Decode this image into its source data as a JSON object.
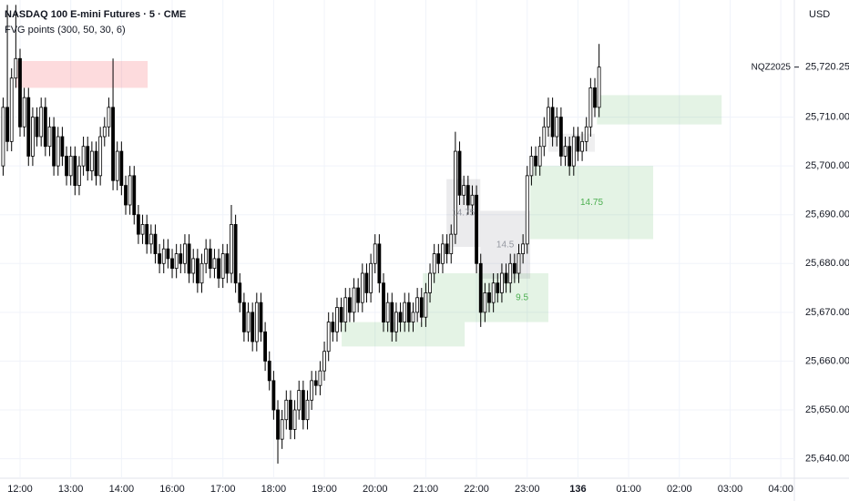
{
  "chart_data": {
    "type": "candlestick",
    "title": "NASDAQ 100 E-mini Futures · 5 · CME",
    "indicator": "FVG points (300, 50, 30, 6)",
    "currency": "USD",
    "symbol": "NQZ2025",
    "last_price": {
      "value": 25720.25,
      "label": "25,720.25"
    },
    "up_color": "#ffffff",
    "down_color": "#000000",
    "grid": true,
    "xlim": [
      -0.74,
      187.2
    ],
    "ylim": [
      25636,
      25734
    ],
    "xticks": [
      {
        "value": 4,
        "label": "12:00"
      },
      {
        "value": 16,
        "label": "13:00"
      },
      {
        "value": 28,
        "label": "14:00"
      },
      {
        "value": 40,
        "label": "16:00"
      },
      {
        "value": 52,
        "label": "17:00"
      },
      {
        "value": 64,
        "label": "18:00"
      },
      {
        "value": 76,
        "label": "19:00"
      },
      {
        "value": 88,
        "label": "20:00"
      },
      {
        "value": 100,
        "label": "21:00"
      },
      {
        "value": 112,
        "label": "22:00"
      },
      {
        "value": 124,
        "label": "23:00"
      },
      136,
      {
        "value": 148,
        "label": "01:00"
      },
      {
        "value": 160,
        "label": "02:00"
      },
      {
        "value": 172,
        "label": "03:00"
      },
      {
        "value": 184,
        "label": "04:00"
      }
    ],
    "yticks": [
      {
        "value": 25640,
        "label": "25,640.00"
      },
      {
        "value": 25650,
        "label": "25,650.00"
      },
      {
        "value": 25660,
        "label": "25,660.00"
      },
      {
        "value": 25670,
        "label": "25,670.00"
      },
      {
        "value": 25680,
        "label": "25,680.00"
      },
      {
        "value": 25690,
        "label": "25,690.00"
      },
      {
        "value": 25700,
        "label": "25,700.00"
      },
      {
        "value": 25710,
        "label": "25,710.00"
      }
    ],
    "open": [
      25700,
      25712,
      25705,
      25718,
      25722,
      25708,
      25714,
      25702,
      25710,
      25706,
      25712,
      25704,
      25708,
      25700,
      25706,
      25702,
      25698,
      25702,
      25696,
      25700,
      25704,
      25699,
      25703,
      25698,
      25706,
      25708,
      25712,
      25697,
      25703,
      25696,
      25692,
      25698,
      25690,
      25686,
      25688,
      25684,
      25686,
      25682,
      25680,
      25683,
      25681,
      25679,
      25682,
      25680,
      25684,
      25678,
      25681,
      25676,
      25680,
      25683,
      25679,
      25681,
      25677,
      25682,
      25678,
      25688,
      25676,
      25672,
      25666,
      25670,
      25664,
      25672,
      25666,
      25660,
      25656,
      25650,
      25644,
      25648,
      25652,
      25646,
      25650,
      25654,
      25648,
      25652,
      25656,
      25655,
      25658,
      25662,
      25668,
      25666,
      25671,
      25668,
      25673,
      25670,
      25675,
      25672,
      25678,
      25674,
      25680,
      25684,
      25676,
      25668,
      25672,
      25666,
      25670,
      25668,
      25672,
      25668,
      25670,
      25673,
      25669,
      25674,
      25678,
      25682,
      25680,
      25684,
      25682,
      25686,
      25703,
      25694,
      25696,
      25692,
      25694,
      25680,
      25670,
      25674,
      25672,
      25676,
      25674,
      25678,
      25676,
      25680,
      25678,
      25682,
      25684,
      25698,
      25702,
      25700,
      25704,
      25708,
      25712,
      25706,
      25710,
      25702,
      25704,
      25700,
      25706,
      25703,
      25705,
      25708,
      25716,
      25712
    ],
    "high": [
      25714,
      25733,
      25720,
      25733,
      25724,
      25716,
      25716,
      25712,
      25712,
      25714,
      25714,
      25710,
      25710,
      25708,
      25708,
      25704,
      25704,
      25704,
      25702,
      25706,
      25706,
      25705,
      25705,
      25708,
      25710,
      25714,
      25722,
      25705,
      25705,
      25698,
      25700,
      25700,
      25692,
      25690,
      25690,
      25688,
      25688,
      25684,
      25685,
      25685,
      25683,
      25684,
      25684,
      25686,
      25686,
      25683,
      25683,
      25682,
      25685,
      25685,
      25683,
      25683,
      25684,
      25684,
      25692,
      25690,
      25678,
      25674,
      25672,
      25672,
      25674,
      25674,
      25668,
      25662,
      25658,
      25652,
      25650,
      25654,
      25654,
      25652,
      25656,
      25656,
      25654,
      25658,
      25658,
      25660,
      25664,
      25670,
      25670,
      25673,
      25673,
      25675,
      25675,
      25677,
      25677,
      25680,
      25680,
      25682,
      25686,
      25686,
      25678,
      25674,
      25674,
      25672,
      25672,
      25674,
      25674,
      25672,
      25675,
      25675,
      25676,
      25680,
      25684,
      25684,
      25686,
      25686,
      25688,
      25707,
      25705,
      25698,
      25698,
      25696,
      25696,
      25682,
      25676,
      25676,
      25678,
      25678,
      25680,
      25680,
      25682,
      25682,
      25684,
      25686,
      25700,
      25704,
      25704,
      25706,
      25710,
      25714,
      25714,
      25712,
      25712,
      25706,
      25706,
      25708,
      25708,
      25707,
      25710,
      25718,
      25718,
      25725
    ],
    "low": [
      25698,
      25703,
      25703,
      25716,
      25706,
      25706,
      25700,
      25700,
      25704,
      25704,
      25702,
      25702,
      25698,
      25698,
      25700,
      25696,
      25696,
      25694,
      25694,
      25698,
      25697,
      25697,
      25696,
      25696,
      25704,
      25706,
      25695,
      25695,
      25694,
      25690,
      25690,
      25688,
      25684,
      25684,
      25682,
      25682,
      25680,
      25678,
      25678,
      25679,
      25677,
      25677,
      25678,
      25678,
      25676,
      25676,
      25674,
      25674,
      25678,
      25677,
      25677,
      25675,
      25675,
      25676,
      25676,
      25674,
      25670,
      25664,
      25664,
      25662,
      25662,
      25664,
      25658,
      25654,
      25648,
      25639,
      25642,
      25646,
      25644,
      25644,
      25648,
      25646,
      25646,
      25650,
      25653,
      25653,
      25656,
      25660,
      25664,
      25664,
      25666,
      25666,
      25668,
      25668,
      25670,
      25670,
      25672,
      25672,
      25678,
      25674,
      25666,
      25666,
      25664,
      25664,
      25666,
      25666,
      25666,
      25666,
      25668,
      25667,
      25667,
      25672,
      25676,
      25678,
      25678,
      25680,
      25680,
      25684,
      25692,
      25692,
      25690,
      25690,
      25678,
      25667,
      25668,
      25670,
      25670,
      25672,
      25672,
      25674,
      25674,
      25676,
      25676,
      25680,
      25682,
      25696,
      25698,
      25698,
      25702,
      25706,
      25704,
      25704,
      25700,
      25700,
      25698,
      25698,
      25701,
      25701,
      25703,
      25706,
      25710,
      25710
    ],
    "close": [
      25712,
      25705,
      25718,
      25722,
      25708,
      25714,
      25702,
      25710,
      25706,
      25712,
      25704,
      25708,
      25700,
      25706,
      25702,
      25698,
      25702,
      25696,
      25700,
      25704,
      25699,
      25703,
      25698,
      25706,
      25708,
      25712,
      25697,
      25703,
      25696,
      25692,
      25698,
      25690,
      25686,
      25688,
      25684,
      25686,
      25682,
      25680,
      25683,
      25681,
      25679,
      25682,
      25680,
      25684,
      25678,
      25681,
      25676,
      25680,
      25683,
      25679,
      25681,
      25677,
      25682,
      25678,
      25688,
      25676,
      25672,
      25666,
      25670,
      25664,
      25672,
      25666,
      25660,
      25656,
      25650,
      25644,
      25648,
      25652,
      25646,
      25650,
      25654,
      25648,
      25652,
      25656,
      25655,
      25658,
      25662,
      25668,
      25666,
      25671,
      25668,
      25673,
      25670,
      25675,
      25672,
      25678,
      25674,
      25680,
      25684,
      25676,
      25668,
      25672,
      25666,
      25670,
      25668,
      25672,
      25668,
      25670,
      25673,
      25669,
      25674,
      25678,
      25682,
      25680,
      25684,
      25682,
      25686,
      25703,
      25694,
      25696,
      25692,
      25694,
      25680,
      25670,
      25674,
      25672,
      25676,
      25674,
      25678,
      25676,
      25680,
      25678,
      25682,
      25684,
      25698,
      25702,
      25700,
      25704,
      25708,
      25712,
      25706,
      25710,
      25702,
      25704,
      25700,
      25706,
      25703,
      25705,
      25708,
      25716,
      25712,
      25720.25
    ],
    "boxes": [
      {
        "start": 3.1,
        "end": 34.2,
        "top": 25721.5,
        "bottom": 25716,
        "color": "rgba(242,54,69,0.18)"
      },
      {
        "start": 80.1,
        "end": 109.2,
        "top": 25668,
        "bottom": 25663,
        "color": "rgba(76,175,80,0.15)"
      },
      {
        "start": 99.3,
        "end": 129,
        "top": 25678,
        "bottom": 25668,
        "color": "rgba(76,175,80,0.15)",
        "label": 9.5,
        "label_color": "#4caf50"
      },
      {
        "start": 124.7,
        "end": 153.8,
        "top": 25700,
        "bottom": 25685,
        "color": "rgba(76,175,80,0.15)",
        "label": 14.75,
        "label_color": "#4caf50"
      },
      {
        "start": 140.5,
        "end": 170,
        "top": 25714.5,
        "bottom": 25708.5,
        "color": "rgba(76,175,80,0.15)"
      },
      {
        "start": 104.9,
        "end": 112.9,
        "top": 25697.3,
        "bottom": 25683.4,
        "color": "rgba(120,123,134,0.15)",
        "label": 14.75,
        "label_color": "#9598a1"
      },
      {
        "start": 112.9,
        "end": 124.7,
        "top": 25690.8,
        "bottom": 25676.9,
        "color": "rgba(120,123,134,0.15)",
        "label": 14.5,
        "label_color": "#9598a1"
      },
      {
        "start": 129,
        "end": 140,
        "top": 25706.6,
        "bottom": 25702.9,
        "color": "rgba(120,123,134,0.12)"
      }
    ]
  }
}
